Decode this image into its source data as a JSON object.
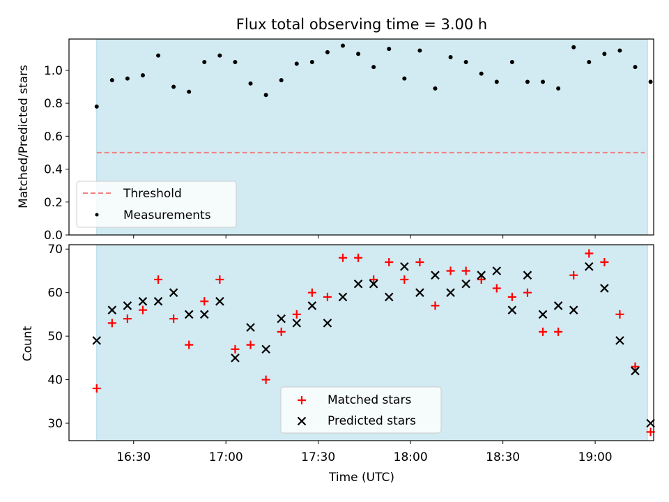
{
  "colors": {
    "band": "#add8e6",
    "threshold": "#f08080",
    "measurement": "#000000",
    "matched": "#ff0000",
    "predicted": "#000000"
  },
  "chart_data": [
    {
      "type": "scatter",
      "title": "Flux total observing time = 3.00 h",
      "xlabel": "",
      "ylabel": "Matched/Predicted stars",
      "xlim": [
        "16:09",
        "19:19"
      ],
      "ylim": [
        0,
        1.19
      ],
      "yticks": [
        "0.0",
        "0.2",
        "0.4",
        "0.6",
        "0.8",
        "1.0"
      ],
      "shaded_span": [
        "16:18",
        "19:17"
      ],
      "legend": {
        "position": "lower left",
        "entries": [
          "Threshold",
          "Measurements"
        ]
      },
      "threshold": {
        "name": "Threshold",
        "value": 0.5,
        "style": "dashed",
        "x_range": [
          "16:18",
          "19:17"
        ]
      },
      "series": [
        {
          "name": "Measurements",
          "marker": "dot",
          "x": [
            "16:18",
            "16:23",
            "16:28",
            "16:33",
            "16:38",
            "16:43",
            "16:48",
            "16:53",
            "16:58",
            "17:03",
            "17:08",
            "17:13",
            "17:18",
            "17:23",
            "17:28",
            "17:33",
            "17:38",
            "17:43",
            "17:48",
            "17:53",
            "17:58",
            "18:03",
            "18:08",
            "18:13",
            "18:18",
            "18:23",
            "18:28",
            "18:33",
            "18:38",
            "18:43",
            "18:48",
            "18:53",
            "18:58",
            "19:03",
            "19:08",
            "19:13",
            "19:18"
          ],
          "y": [
            0.78,
            0.94,
            0.95,
            0.97,
            1.09,
            0.9,
            0.87,
            1.05,
            1.09,
            1.05,
            0.92,
            0.85,
            0.94,
            1.04,
            1.05,
            1.11,
            1.15,
            1.1,
            1.02,
            1.13,
            0.95,
            1.12,
            0.89,
            1.08,
            1.05,
            0.98,
            0.93,
            1.05,
            0.93,
            0.93,
            0.89,
            1.14,
            1.05,
            1.1,
            1.12,
            1.02,
            0.93
          ]
        }
      ]
    },
    {
      "type": "scatter",
      "title": "",
      "xlabel": "Time (UTC)",
      "ylabel": "Count",
      "xlim": [
        "16:09",
        "19:19"
      ],
      "ylim": [
        26,
        71
      ],
      "xticks": [
        "16:30",
        "17:00",
        "17:30",
        "18:00",
        "18:30",
        "19:00"
      ],
      "yticks": [
        "30",
        "40",
        "50",
        "60",
        "70"
      ],
      "shaded_span": [
        "16:18",
        "19:17"
      ],
      "legend": {
        "position": "lower center",
        "entries": [
          "Matched stars",
          "Predicted stars"
        ]
      },
      "series": [
        {
          "name": "Matched stars",
          "marker": "plus",
          "x": [
            "16:18",
            "16:23",
            "16:28",
            "16:33",
            "16:38",
            "16:43",
            "16:48",
            "16:53",
            "16:58",
            "17:03",
            "17:08",
            "17:13",
            "17:18",
            "17:23",
            "17:28",
            "17:33",
            "17:38",
            "17:43",
            "17:48",
            "17:53",
            "17:58",
            "18:03",
            "18:08",
            "18:13",
            "18:18",
            "18:23",
            "18:28",
            "18:33",
            "18:38",
            "18:43",
            "18:48",
            "18:53",
            "18:58",
            "19:03",
            "19:08",
            "19:13",
            "19:18"
          ],
          "y": [
            38,
            53,
            54,
            56,
            63,
            54,
            48,
            58,
            63,
            47,
            48,
            40,
            51,
            55,
            60,
            59,
            68,
            68,
            63,
            67,
            63,
            67,
            57,
            65,
            65,
            63,
            61,
            59,
            60,
            51,
            51,
            64,
            69,
            67,
            55,
            43,
            28
          ]
        },
        {
          "name": "Predicted stars",
          "marker": "x",
          "x": [
            "16:18",
            "16:23",
            "16:28",
            "16:33",
            "16:38",
            "16:43",
            "16:48",
            "16:53",
            "16:58",
            "17:03",
            "17:08",
            "17:13",
            "17:18",
            "17:23",
            "17:28",
            "17:33",
            "17:38",
            "17:43",
            "17:48",
            "17:53",
            "17:58",
            "18:03",
            "18:08",
            "18:13",
            "18:18",
            "18:23",
            "18:28",
            "18:33",
            "18:38",
            "18:43",
            "18:48",
            "18:53",
            "18:58",
            "19:03",
            "19:08",
            "19:13",
            "19:18"
          ],
          "y": [
            49,
            56,
            57,
            58,
            58,
            60,
            55,
            55,
            58,
            45,
            52,
            47,
            54,
            53,
            57,
            53,
            59,
            62,
            62,
            59,
            66,
            60,
            64,
            60,
            62,
            64,
            65,
            56,
            64,
            55,
            57,
            56,
            66,
            61,
            49,
            42,
            30
          ]
        }
      ]
    }
  ]
}
